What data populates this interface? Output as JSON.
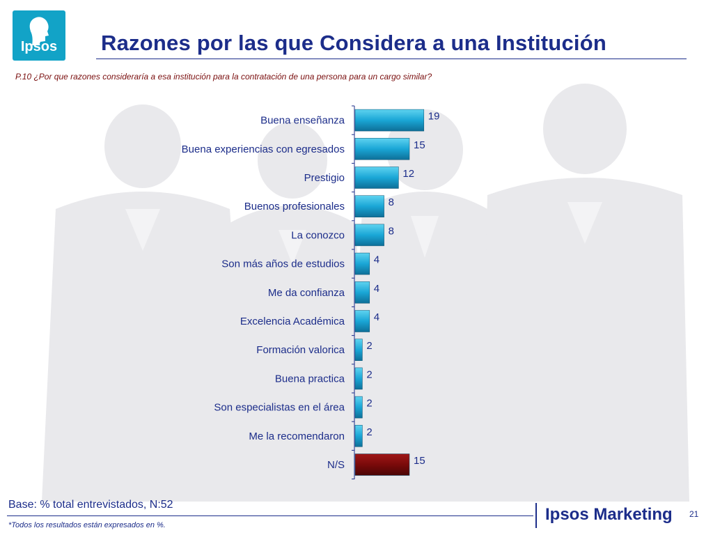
{
  "logo": {
    "text": "Ipsos"
  },
  "header": {
    "title": "Razones por las que Considera a una Institución",
    "question": "P.10 ¿Por que razones consideraría a esa institución para la contratación de una persona para un cargo similar?"
  },
  "chart_data": {
    "type": "bar",
    "orientation": "horizontal",
    "categories": [
      "Buena enseñanza",
      "Buena experiencias con egresados",
      "Prestigio",
      "Buenos profesionales",
      "La conozco",
      "Son más años de estudios",
      "Me da confianza",
      "Excelencia Académica",
      "Formación valorica",
      "Buena practica",
      "Son especialistas en el área",
      "Me la recomendaron",
      "N/S"
    ],
    "values": [
      19,
      15,
      12,
      8,
      8,
      4,
      4,
      4,
      2,
      2,
      2,
      2,
      15
    ],
    "colors": [
      "#1aa6d6",
      "#1aa6d6",
      "#1aa6d6",
      "#1aa6d6",
      "#1aa6d6",
      "#1aa6d6",
      "#1aa6d6",
      "#1aa6d6",
      "#1aa6d6",
      "#1aa6d6",
      "#1aa6d6",
      "#1aa6d6",
      "#7a0a0a"
    ],
    "xlim": [
      0,
      100
    ],
    "grid": false,
    "legend": "none"
  },
  "footer": {
    "base": "Base: % total entrevistados, N:52",
    "note": "*Todos los resultados están expresados en %.",
    "brand": "Ipsos Marketing",
    "page": "21"
  }
}
